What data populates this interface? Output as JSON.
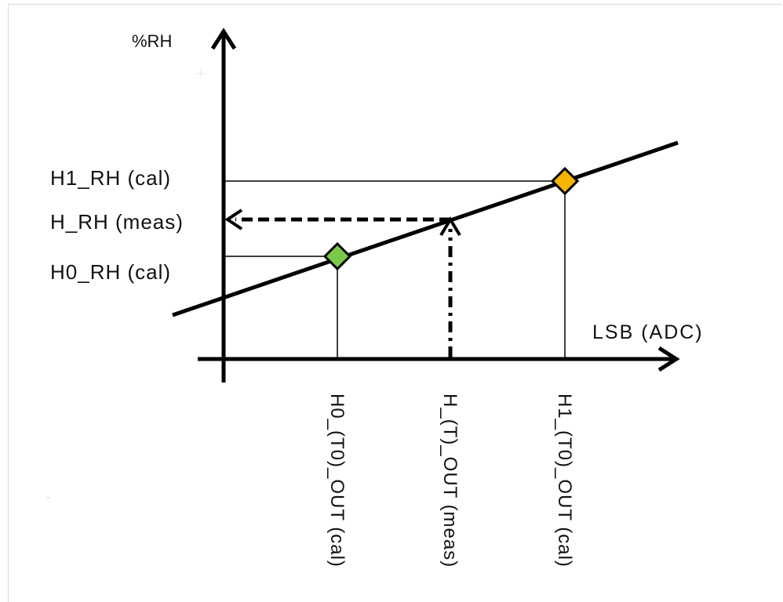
{
  "y_axis_label": "%RH",
  "x_axis_label": "LSB (ADC)",
  "y_levels": [
    {
      "label": "H1_RH (cal)"
    },
    {
      "label": "H_RH (meas)"
    },
    {
      "label": "H0_RH (cal)"
    }
  ],
  "x_levels": [
    {
      "label": "H0_(T0)_OUT (cal)"
    },
    {
      "label": "H_(T)_OUT (meas)"
    },
    {
      "label": "H1_(T0)_OUT (cal)"
    }
  ],
  "colors": {
    "line": "#000000",
    "point_h0": "#7cc84a",
    "point_h1": "#f5b400"
  }
}
